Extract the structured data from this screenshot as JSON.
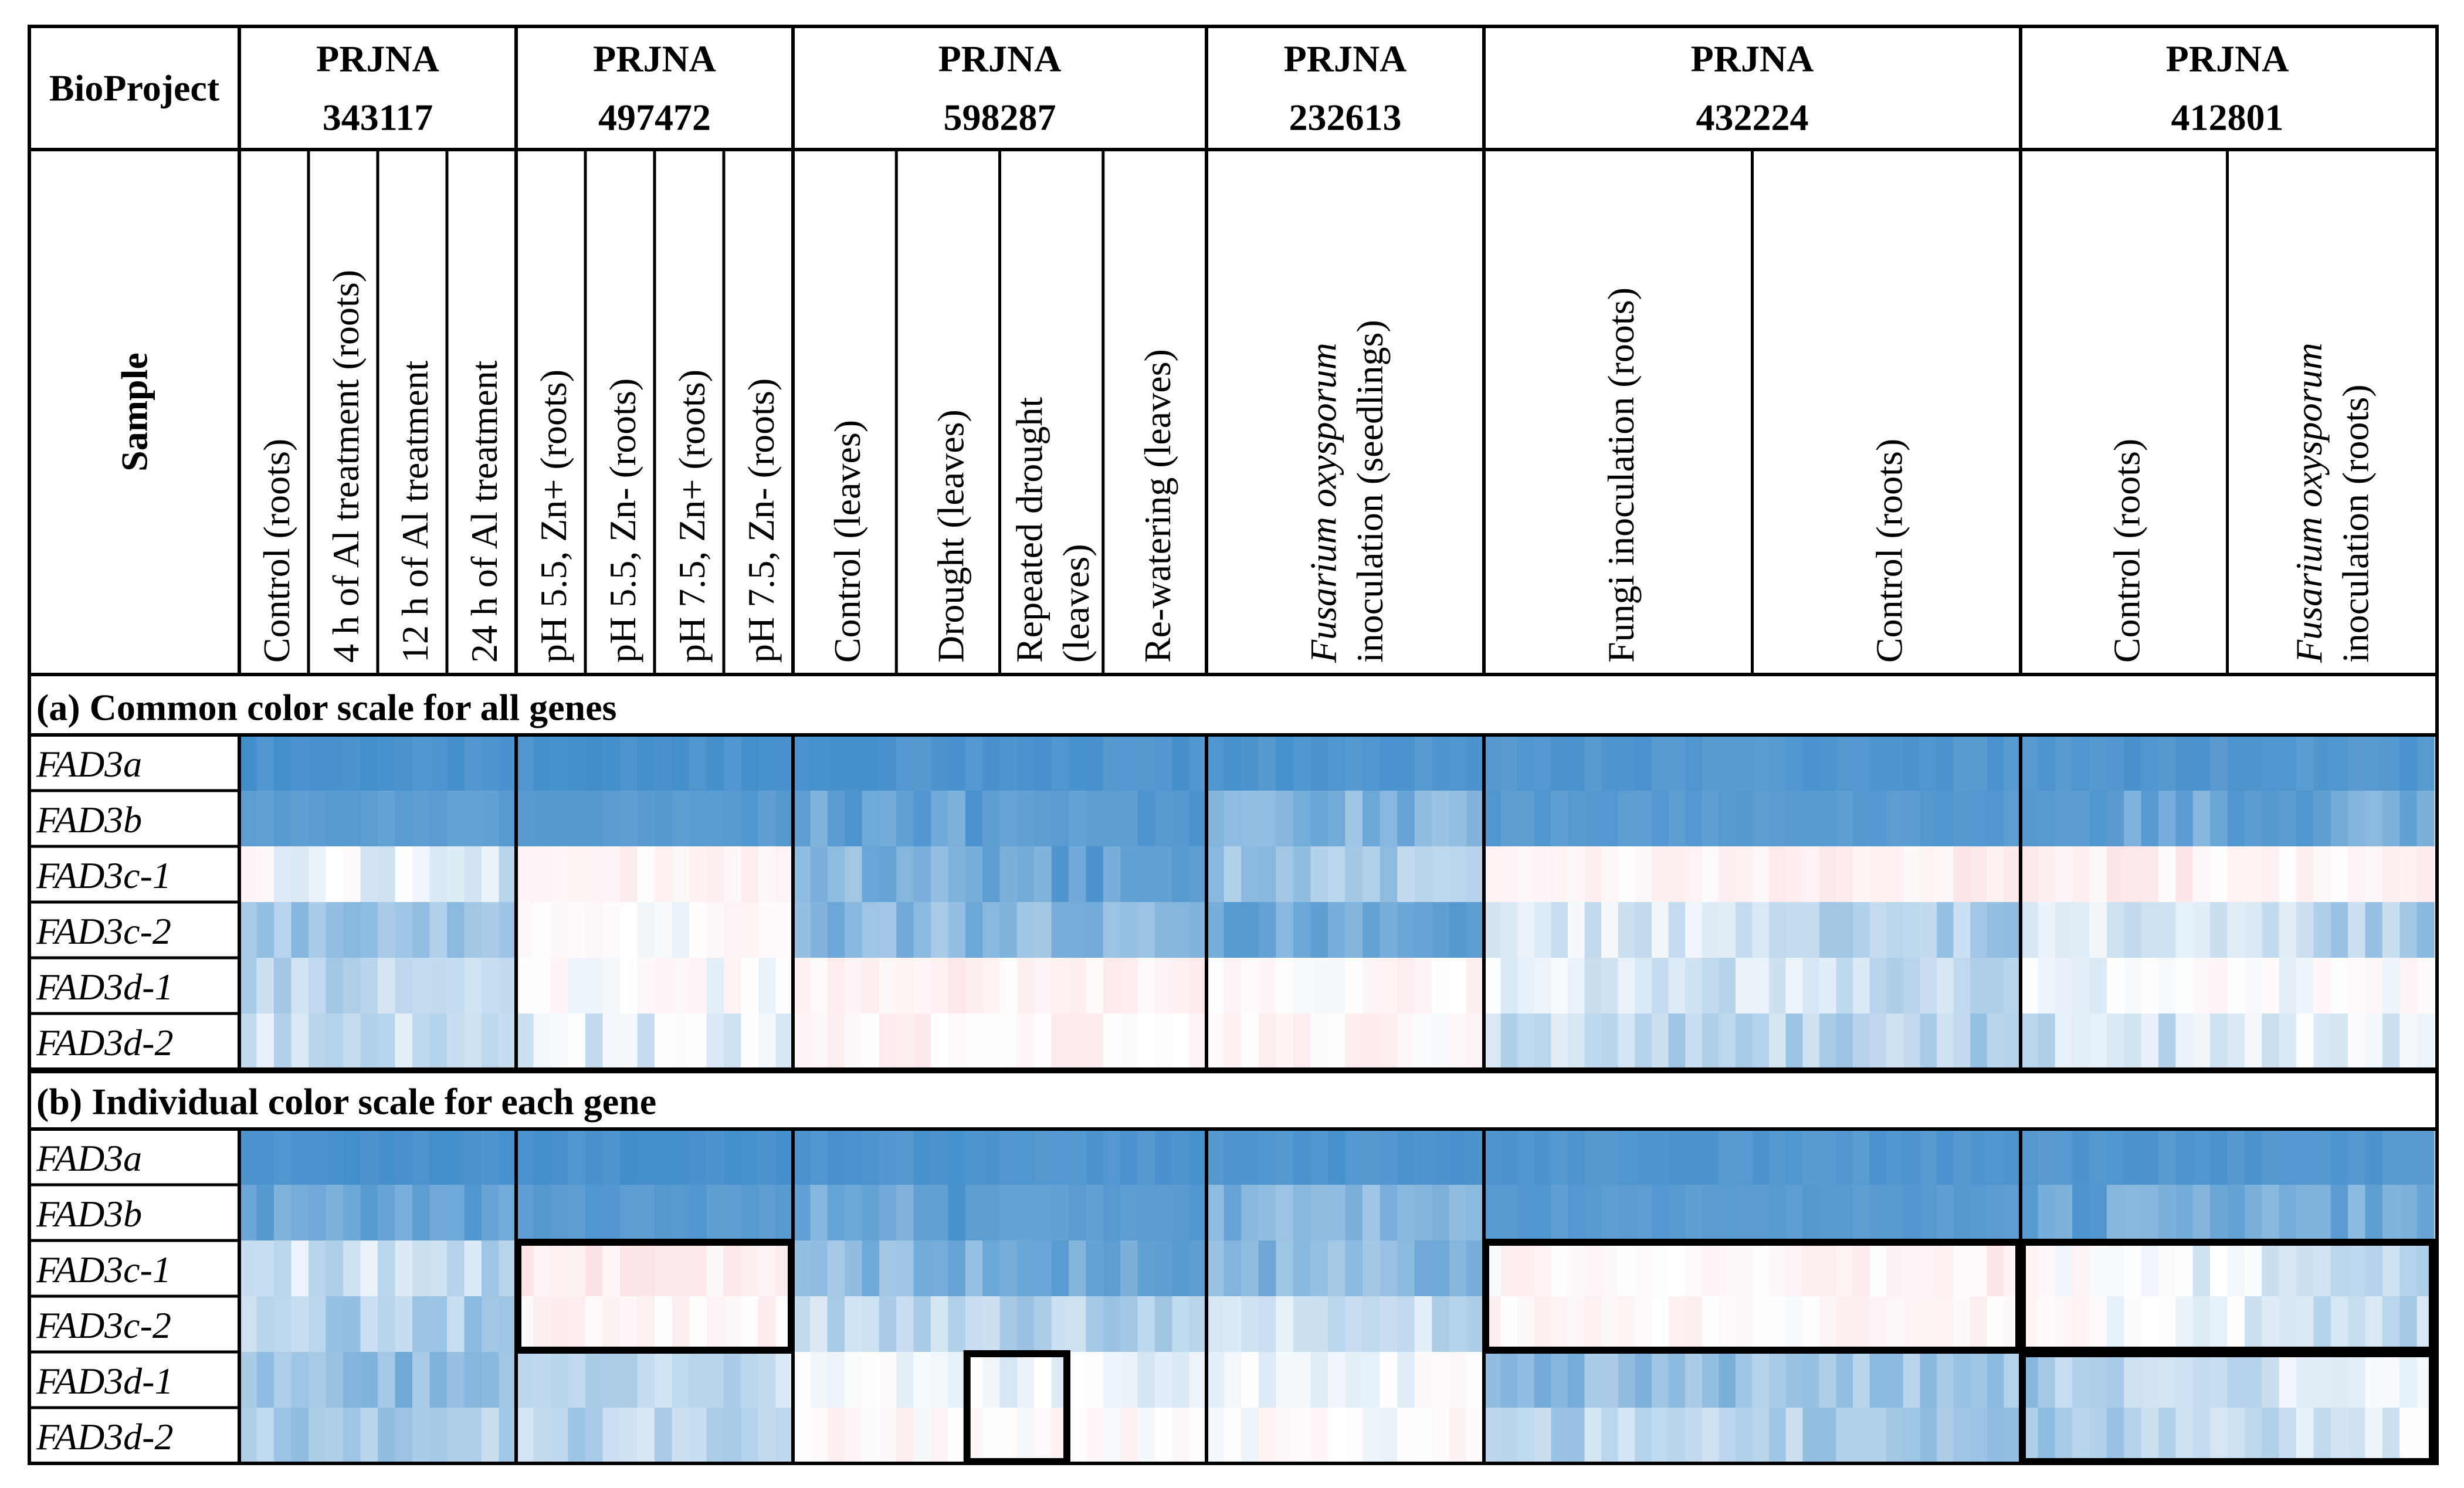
{
  "chart_data": {
    "type": "heatmap",
    "corner_labels": {
      "bioproject": "BioProject",
      "sample": "Sample"
    },
    "colors": {
      "blue": "#3a89c9",
      "white": "#ffffff",
      "red": "#f7b8bd"
    },
    "genes": [
      "FAD3a",
      "FAD3b",
      "FAD3c-1",
      "FAD3c-2",
      "FAD3d-1",
      "FAD3d-2"
    ],
    "projects": [
      {
        "name": "PRJNA",
        "number": "343117",
        "cells": 16,
        "samples": [
          {
            "parts": [
              {
                "t": "Control (roots)",
                "i": false
              }
            ]
          },
          {
            "parts": [
              {
                "t": "4 h of Al treatment (roots)",
                "i": false
              }
            ]
          },
          {
            "parts": [
              {
                "t": "12 h of Al treatment",
                "i": false
              }
            ]
          },
          {
            "parts": [
              {
                "t": "24 h of Al treatment",
                "i": false
              }
            ]
          }
        ]
      },
      {
        "name": "PRJNA",
        "number": "497472",
        "cells": 16,
        "samples": [
          {
            "parts": [
              {
                "t": "pH 5.5, Zn+ (roots)",
                "i": false
              }
            ]
          },
          {
            "parts": [
              {
                "t": "pH 5.5, Zn- (roots)",
                "i": false
              }
            ]
          },
          {
            "parts": [
              {
                "t": "pH 7.5, Zn+ (roots)",
                "i": false
              }
            ]
          },
          {
            "parts": [
              {
                "t": "pH 7.5, Zn- (roots)",
                "i": false
              }
            ]
          }
        ]
      },
      {
        "name": "PRJNA",
        "number": "598287",
        "cells": 24,
        "samples": [
          {
            "parts": [
              {
                "t": "Control (leaves)",
                "i": false
              }
            ]
          },
          {
            "parts": [
              {
                "t": "Drought (leaves)",
                "i": false
              }
            ]
          },
          {
            "parts": [
              {
                "t": "Repeated drought",
                "i": false
              }
            ],
            "line2": "(leaves)"
          },
          {
            "parts": [
              {
                "t": "Re-watering (leaves)",
                "i": false
              }
            ]
          }
        ]
      },
      {
        "name": "PRJNA",
        "number": "232613",
        "cells": 16,
        "samples": [
          {
            "parts": [
              {
                "t": "Fusarium oxysporum",
                "i": true
              }
            ],
            "line2": "inoculation (seedlings)"
          }
        ]
      },
      {
        "name": "PRJNA",
        "number": "432224",
        "cells": 32,
        "samples": [
          {
            "parts": [
              {
                "t": "Fungi inoculation (roots)",
                "i": false
              }
            ]
          },
          {
            "parts": [
              {
                "t": "Control (roots)",
                "i": false
              }
            ]
          }
        ]
      },
      {
        "name": "PRJNA",
        "number": "412801",
        "cells": 24,
        "samples": [
          {
            "parts": [
              {
                "t": "Control (roots)",
                "i": false
              }
            ]
          },
          {
            "parts": [
              {
                "t": "Fusarium oxysporum",
                "i": true
              }
            ],
            "line2": "inoculation (roots)"
          }
        ]
      }
    ],
    "sections": [
      {
        "title": "(a) Common color scale for all genes",
        "scale": "common",
        "profiles": [
          [
            [
              -0.92,
              -0.92
            ],
            [
              -0.92,
              -0.92
            ],
            [
              -0.9,
              -0.9
            ],
            [
              -0.9,
              -0.9
            ],
            [
              -0.88,
              -0.88
            ],
            [
              -0.88,
              -0.88
            ]
          ],
          [
            [
              -0.82,
              -0.82
            ],
            [
              -0.85,
              -0.85
            ],
            [
              -0.72,
              -0.88
            ],
            [
              -0.62,
              -0.62
            ],
            [
              -0.85,
              -0.85
            ],
            [
              -0.78,
              -0.7
            ]
          ],
          [
            [
              0.0,
              -0.2
            ],
            [
              0.2,
              0.2
            ],
            [
              -0.6,
              -0.85
            ],
            [
              -0.45,
              -0.45
            ],
            [
              0.1,
              0.25
            ],
            [
              0.22,
              0.15
            ]
          ],
          [
            [
              -0.5,
              -0.5
            ],
            [
              0.0,
              0.05
            ],
            [
              -0.6,
              -0.6
            ],
            [
              -0.72,
              -0.72
            ],
            [
              -0.1,
              -0.45
            ],
            [
              -0.05,
              -0.45
            ]
          ],
          [
            [
              -0.4,
              -0.3
            ],
            [
              0.0,
              0.02
            ],
            [
              0.15,
              0.2
            ],
            [
              0.08,
              0.08
            ],
            [
              -0.15,
              -0.3
            ],
            [
              -0.05,
              0.05
            ]
          ],
          [
            [
              -0.22,
              -0.3
            ],
            [
              -0.18,
              -0.1
            ],
            [
              0.15,
              0.15
            ],
            [
              0.12,
              0.12
            ],
            [
              -0.3,
              -0.4
            ],
            [
              -0.3,
              -0.1
            ]
          ]
        ]
      },
      {
        "title": "(b) Individual color scale for each gene",
        "scale": "individual",
        "profiles": [
          [
            [
              -0.92,
              -0.92
            ],
            [
              -0.92,
              -0.92
            ],
            [
              -0.9,
              -0.9
            ],
            [
              -0.9,
              -0.9
            ],
            [
              -0.88,
              -0.88
            ],
            [
              -0.88,
              -0.88
            ]
          ],
          [
            [
              -0.8,
              -0.8
            ],
            [
              -0.85,
              -0.85
            ],
            [
              -0.72,
              -0.88
            ],
            [
              -0.62,
              -0.62
            ],
            [
              -0.85,
              -0.85
            ],
            [
              -0.78,
              -0.7
            ]
          ],
          [
            [
              -0.2,
              -0.35
            ],
            [
              0.22,
              0.22
            ],
            [
              -0.55,
              -0.85
            ],
            [
              -0.6,
              -0.6
            ],
            [
              0.1,
              0.2
            ],
            [
              0.1,
              -0.35
            ]
          ],
          [
            [
              -0.35,
              -0.45
            ],
            [
              0.15,
              0.15
            ],
            [
              -0.3,
              -0.45
            ],
            [
              -0.28,
              -0.28
            ],
            [
              0.1,
              0.1
            ],
            [
              0.1,
              -0.35
            ]
          ],
          [
            [
              -0.55,
              -0.6
            ],
            [
              -0.3,
              -0.3
            ],
            [
              0.05,
              -0.2
            ],
            [
              -0.02,
              -0.02
            ],
            [
              -0.55,
              -0.5
            ],
            [
              -0.45,
              -0.1
            ]
          ],
          [
            [
              -0.4,
              -0.4
            ],
            [
              -0.35,
              -0.35
            ],
            [
              0.1,
              0.05
            ],
            [
              0.05,
              0.05
            ],
            [
              -0.35,
              -0.45
            ],
            [
              -0.45,
              -0.1
            ]
          ]
        ],
        "highlights": [
          {
            "project": 1,
            "rows": [
              2,
              3
            ]
          },
          {
            "project": 2,
            "cell_range": [
              10,
              15
            ],
            "rows": [
              4,
              5
            ]
          },
          {
            "project": 4,
            "rows": [
              2,
              3
            ]
          },
          {
            "project": 5,
            "rows": [
              2,
              3
            ]
          },
          {
            "project": 5,
            "rows": [
              4,
              5
            ]
          }
        ]
      }
    ]
  }
}
